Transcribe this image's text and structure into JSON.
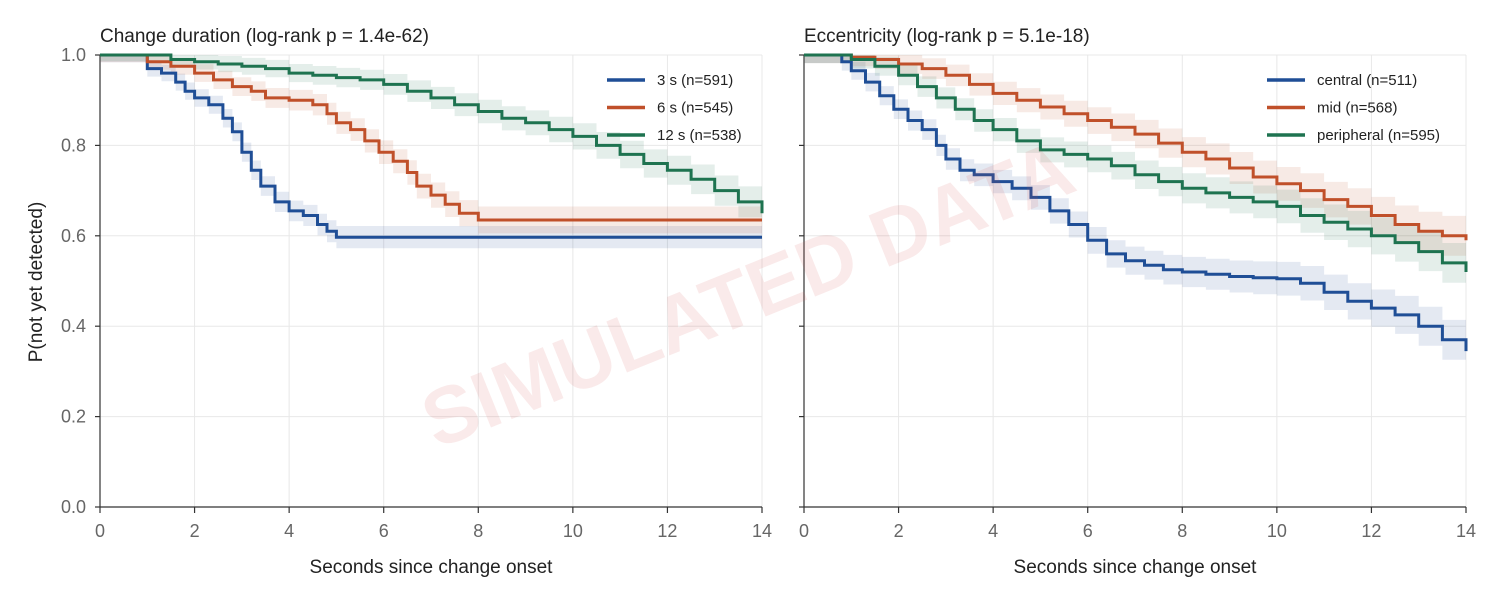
{
  "watermark": "SIMULATED DATA",
  "shared_ylabel": "P(not yet detected)",
  "chart_data": [
    {
      "type": "line",
      "title": "Change duration  (log-rank p = 1.4e-62)",
      "xlabel": "Seconds since change onset",
      "ylabel": "P(not yet detected)",
      "xlim": [
        0,
        14
      ],
      "ylim": [
        0,
        1
      ],
      "xticks": [
        0,
        2,
        4,
        6,
        8,
        10,
        12,
        14
      ],
      "yticks": [
        0.0,
        0.2,
        0.4,
        0.6,
        0.8,
        1.0
      ],
      "ytick_labels": [
        "0.0",
        "0.2",
        "0.4",
        "0.6",
        "0.8",
        "1.0"
      ],
      "step": true,
      "confidence_band": true,
      "grid": true,
      "legend": "top-right",
      "series": [
        {
          "name": "3 s (n=591)",
          "color": "#1f4e96",
          "x": [
            0,
            1.0,
            1.3,
            1.6,
            1.8,
            2.0,
            2.3,
            2.6,
            2.8,
            3.0,
            3.2,
            3.4,
            3.7,
            4.0,
            4.3,
            4.6,
            4.8,
            5.0,
            14
          ],
          "y": [
            1.0,
            0.97,
            0.96,
            0.94,
            0.92,
            0.905,
            0.89,
            0.86,
            0.83,
            0.785,
            0.745,
            0.71,
            0.675,
            0.655,
            0.645,
            0.625,
            0.61,
            0.597,
            0.597
          ],
          "band_halfwidth": 0.04
        },
        {
          "name": "6 s (n=545)",
          "color": "#c0502a",
          "x": [
            0,
            1.0,
            1.5,
            2.0,
            2.4,
            2.8,
            3.2,
            3.5,
            4.0,
            4.5,
            4.8,
            5.0,
            5.3,
            5.6,
            5.9,
            6.2,
            6.5,
            6.7,
            7.0,
            7.3,
            7.6,
            8.0,
            14
          ],
          "y": [
            1.0,
            0.985,
            0.975,
            0.96,
            0.945,
            0.93,
            0.92,
            0.905,
            0.9,
            0.89,
            0.87,
            0.85,
            0.835,
            0.81,
            0.785,
            0.765,
            0.74,
            0.71,
            0.69,
            0.67,
            0.65,
            0.635,
            0.635
          ],
          "band_halfwidth": 0.04
        },
        {
          "name": "12 s (n=538)",
          "color": "#1e7350",
          "x": [
            0,
            1.5,
            2.0,
            2.5,
            3.0,
            3.5,
            4.0,
            4.5,
            5.0,
            5.5,
            6.0,
            6.5,
            7.0,
            7.5,
            8.0,
            8.5,
            9.0,
            9.5,
            10.0,
            10.5,
            11.0,
            11.5,
            12.0,
            12.5,
            13.0,
            13.5,
            14.0
          ],
          "y": [
            1.0,
            0.99,
            0.985,
            0.98,
            0.975,
            0.97,
            0.96,
            0.955,
            0.95,
            0.945,
            0.935,
            0.92,
            0.905,
            0.89,
            0.875,
            0.86,
            0.85,
            0.835,
            0.82,
            0.8,
            0.78,
            0.76,
            0.745,
            0.725,
            0.7,
            0.675,
            0.65
          ],
          "band_halfwidth": 0.035
        }
      ]
    },
    {
      "type": "line",
      "title": "Eccentricity  (log-rank p = 5.1e-18)",
      "xlabel": "Seconds since change onset",
      "xlim": [
        0,
        14
      ],
      "ylim": [
        0,
        1
      ],
      "xticks": [
        0,
        2,
        4,
        6,
        8,
        10,
        12,
        14
      ],
      "yticks": [
        0.0,
        0.2,
        0.4,
        0.6,
        0.8,
        1.0
      ],
      "step": true,
      "confidence_band": true,
      "grid": true,
      "legend": "top-right",
      "series": [
        {
          "name": "central (n=511)",
          "color": "#1f4e96",
          "x": [
            0,
            0.8,
            1.0,
            1.3,
            1.6,
            1.9,
            2.2,
            2.5,
            2.8,
            3.0,
            3.3,
            3.6,
            4.0,
            4.4,
            4.8,
            5.2,
            5.6,
            6.0,
            6.4,
            6.8,
            7.2,
            7.6,
            8.0,
            8.5,
            9.0,
            9.5,
            10.0,
            10.5,
            11.0,
            11.5,
            12.0,
            12.5,
            13.0,
            13.5,
            14.0
          ],
          "y": [
            1.0,
            0.985,
            0.965,
            0.94,
            0.91,
            0.88,
            0.855,
            0.835,
            0.8,
            0.77,
            0.745,
            0.735,
            0.72,
            0.705,
            0.685,
            0.655,
            0.625,
            0.59,
            0.56,
            0.545,
            0.535,
            0.525,
            0.52,
            0.515,
            0.51,
            0.507,
            0.505,
            0.495,
            0.475,
            0.455,
            0.44,
            0.425,
            0.4,
            0.37,
            0.345
          ],
          "band_halfwidth": 0.045
        },
        {
          "name": "mid (n=568)",
          "color": "#c0502a",
          "x": [
            0,
            1.0,
            1.5,
            2.0,
            2.5,
            3.0,
            3.5,
            4.0,
            4.5,
            5.0,
            5.5,
            6.0,
            6.5,
            7.0,
            7.5,
            8.0,
            8.5,
            9.0,
            9.5,
            10.0,
            10.5,
            11.0,
            11.5,
            12.0,
            12.5,
            13.0,
            13.5,
            14.0
          ],
          "y": [
            1.0,
            0.995,
            0.99,
            0.98,
            0.97,
            0.955,
            0.935,
            0.915,
            0.9,
            0.885,
            0.87,
            0.855,
            0.84,
            0.825,
            0.805,
            0.785,
            0.77,
            0.75,
            0.73,
            0.715,
            0.7,
            0.68,
            0.665,
            0.645,
            0.625,
            0.61,
            0.6,
            0.59
          ],
          "band_halfwidth": 0.045
        },
        {
          "name": "peripheral (n=595)",
          "color": "#1e7350",
          "x": [
            0,
            1.0,
            1.5,
            2.0,
            2.4,
            2.8,
            3.2,
            3.6,
            4.0,
            4.5,
            5.0,
            5.5,
            6.0,
            6.5,
            7.0,
            7.5,
            8.0,
            8.5,
            9.0,
            9.5,
            10.0,
            10.5,
            11.0,
            11.5,
            12.0,
            12.5,
            13.0,
            13.5,
            14.0
          ],
          "y": [
            1.0,
            0.99,
            0.975,
            0.955,
            0.93,
            0.905,
            0.88,
            0.855,
            0.835,
            0.81,
            0.79,
            0.78,
            0.77,
            0.755,
            0.735,
            0.72,
            0.705,
            0.695,
            0.685,
            0.675,
            0.665,
            0.645,
            0.63,
            0.615,
            0.6,
            0.585,
            0.565,
            0.54,
            0.52
          ],
          "band_halfwidth": 0.045
        }
      ]
    }
  ]
}
